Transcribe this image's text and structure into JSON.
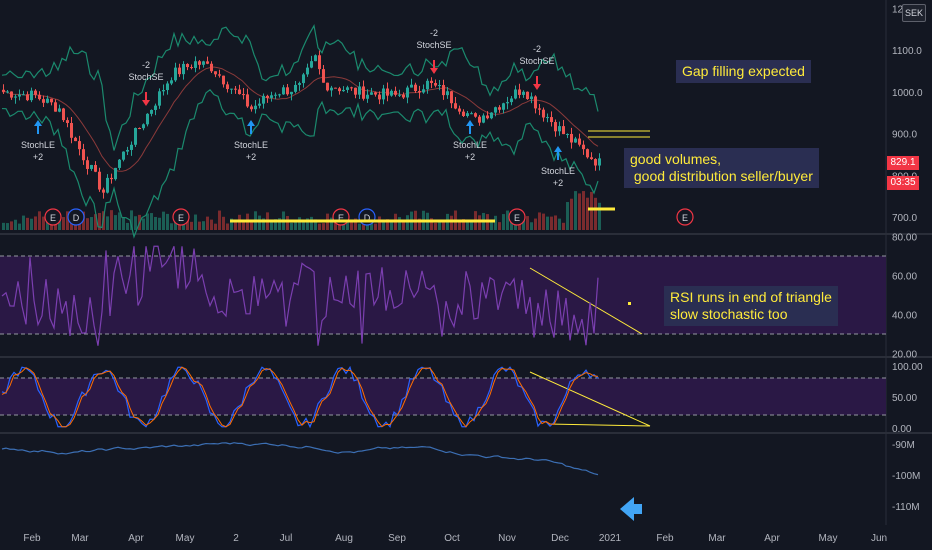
{
  "chart_data": [
    {
      "type": "candlestick",
      "ylim": [
        680,
        1200
      ],
      "price_ticks": [
        "700.0",
        "800.0",
        "900.0",
        "1000.0",
        "1100.0",
        "12"
      ],
      "last_price": "829.1",
      "countdown": "03:35",
      "currency": "SEK",
      "signals": [
        {
          "label": "StochLE",
          "sub": "+2",
          "direction": "long"
        },
        {
          "label": "StochSE",
          "sub": "-2",
          "direction": "short"
        },
        {
          "label": "StochLE",
          "sub": "+2",
          "direction": "long"
        },
        {
          "label": "StochSE",
          "sub": "-2",
          "direction": "short"
        },
        {
          "label": "StochLE",
          "sub": "+2",
          "direction": "long"
        },
        {
          "label": "StochSE",
          "sub": "-2",
          "direction": "short"
        },
        {
          "label": "StochLE",
          "sub": "+2",
          "direction": "long"
        }
      ],
      "event_badges": [
        "E",
        "D",
        "E",
        "E",
        "D",
        "E",
        "E"
      ],
      "annotations": [
        "Gap filling expected",
        "good volumes,\n good distribution seller/buyer"
      ]
    },
    {
      "type": "line",
      "name": "RSI",
      "ylim": [
        20,
        80
      ],
      "ticks": [
        "80.00",
        "60.00",
        "40.00",
        "20.00"
      ],
      "bands": [
        70,
        30
      ],
      "annotation": "RSI runs in end of triangle\nslow stochastic too"
    },
    {
      "type": "line",
      "name": "Stochastic",
      "ylim": [
        0,
        100
      ],
      "ticks": [
        "100.00",
        "50.00",
        "0.00"
      ],
      "bands": [
        80,
        20
      ]
    },
    {
      "type": "line",
      "name": "OBV",
      "ylim": [
        -112,
        -88
      ],
      "ticks": [
        "-90M",
        "-100M",
        "-110M"
      ]
    }
  ],
  "x_axis": {
    "labels": [
      "Feb",
      "Mar",
      "Apr",
      "May",
      "2",
      "Jul",
      "Aug",
      "Sep",
      "Oct",
      "Nov",
      "Dec",
      "2021",
      "Feb",
      "Mar",
      "Apr",
      "May",
      "Jun"
    ]
  },
  "colors": {
    "background": "#131722",
    "up": "#26a69a",
    "down": "#ef5350",
    "bollinger": "#1b8a6e",
    "rsi": "#7b3fb0",
    "stoch_k": "#2962ff",
    "stoch_d": "#ff6d00",
    "obv": "#3c6fb4",
    "annotation": "#ffeb3b",
    "arrow_blue": "#2196f3",
    "arrow_red": "#f23645"
  }
}
